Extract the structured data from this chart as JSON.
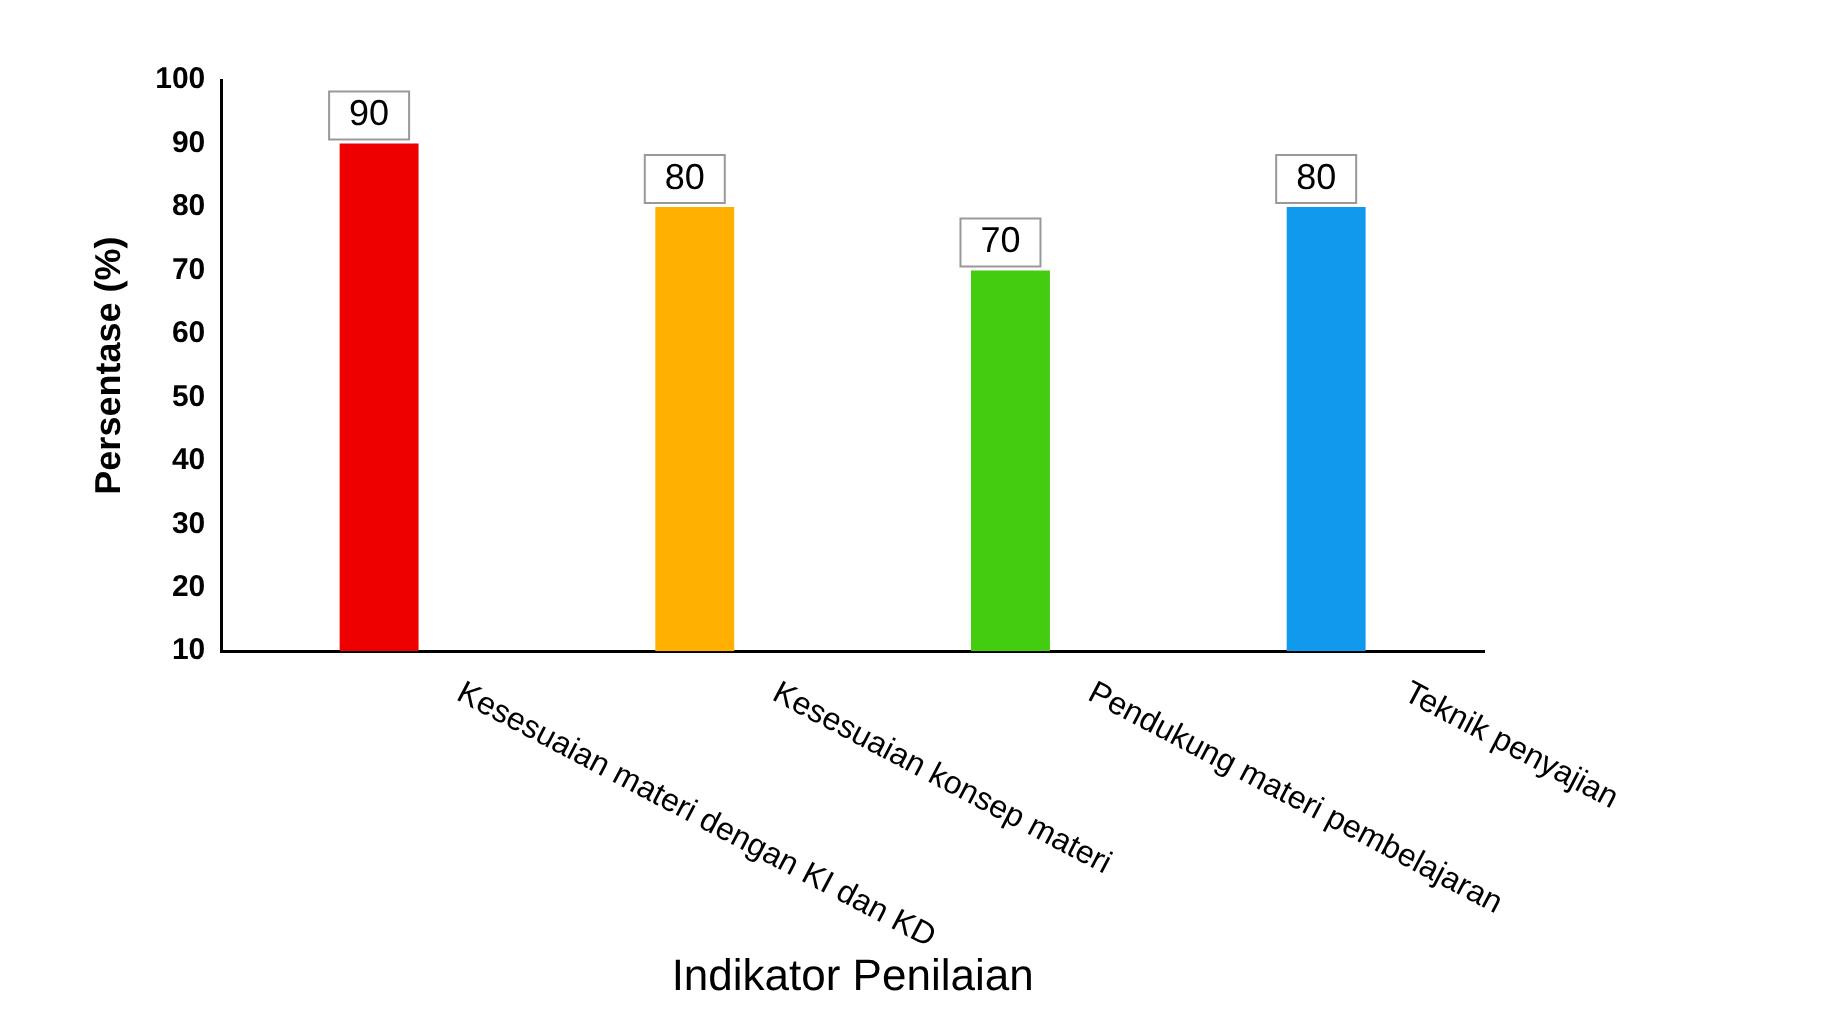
{
  "chart_data": {
    "type": "bar",
    "xlabel": "Indikator Penilaian",
    "ylabel": "Persentase (%)",
    "categories": [
      "Kesesuaian materi dengan KI dan KD",
      "Kesesuaian konsep materi",
      "Pendukung materi pembelajaran",
      "Teknik penyajian"
    ],
    "values": [
      90,
      80,
      70,
      80
    ],
    "colors": [
      "#ee0000",
      "#ffb000",
      "#44cc11",
      "#1199ee"
    ],
    "ylim": [
      10,
      100
    ],
    "yticks": [
      10,
      20,
      30,
      40,
      50,
      60,
      70,
      80,
      90,
      100
    ],
    "grid": false,
    "legend": false,
    "data_labels": true
  }
}
